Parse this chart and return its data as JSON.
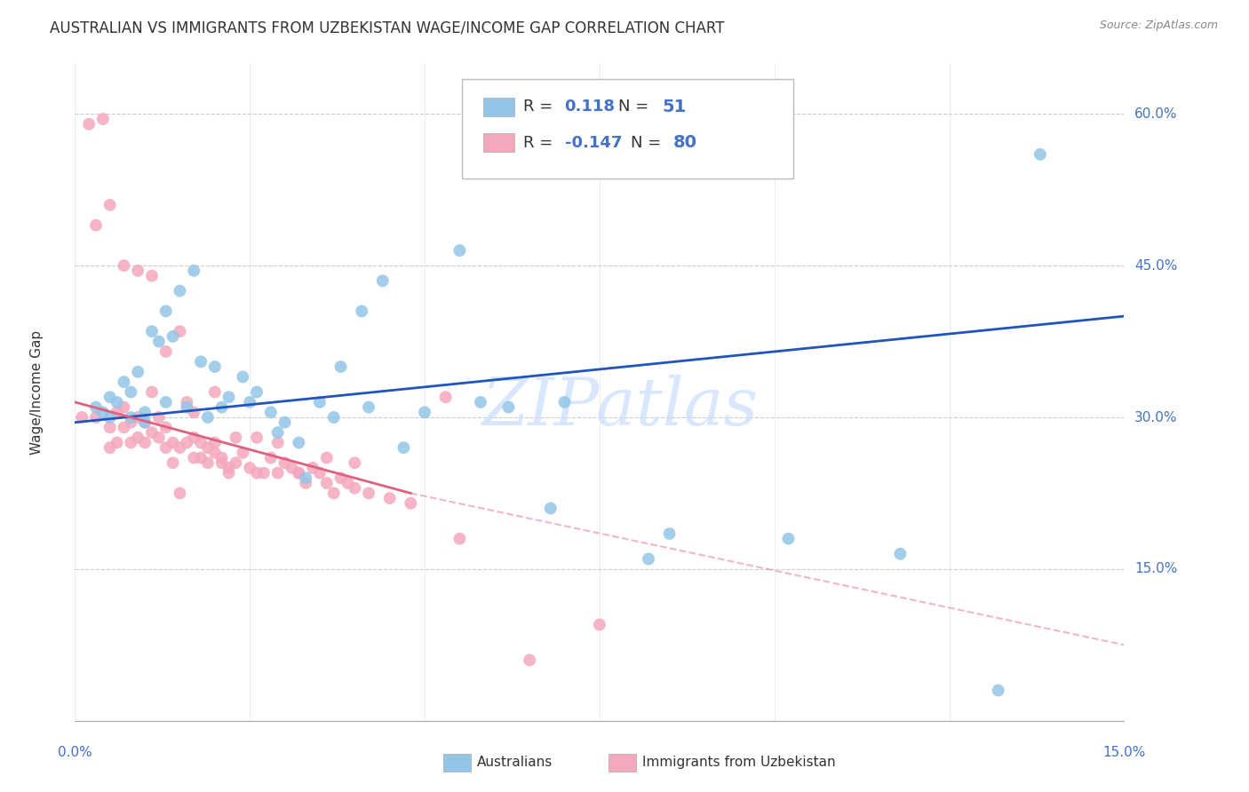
{
  "title": "AUSTRALIAN VS IMMIGRANTS FROM UZBEKISTAN WAGE/INCOME GAP CORRELATION CHART",
  "source": "Source: ZipAtlas.com",
  "ylabel": "Wage/Income Gap",
  "y_tick_labels": [
    "15.0%",
    "30.0%",
    "45.0%",
    "60.0%"
  ],
  "y_tick_values": [
    15.0,
    30.0,
    45.0,
    60.0
  ],
  "xmin": 0.0,
  "xmax": 15.0,
  "ymin": 0.0,
  "ymax": 65.0,
  "legend_r_aus": "0.118",
  "legend_n_aus": "51",
  "legend_r_imm": "-0.147",
  "legend_n_imm": "80",
  "aus_color": "#92C5E8",
  "imm_color": "#F4A8BC",
  "aus_line_color": "#2255BB",
  "imm_line_color": "#E06080",
  "watermark": "ZIPatlas",
  "background_color": "#FFFFFF",
  "grid_color": "#CCCCCC",
  "aus_line_x0": 0.0,
  "aus_line_y0": 29.5,
  "aus_line_x1": 15.0,
  "aus_line_y1": 40.0,
  "imm_solid_x0": 0.0,
  "imm_solid_y0": 31.5,
  "imm_solid_x1": 4.8,
  "imm_solid_y1": 22.5,
  "imm_dash_x1": 15.0,
  "imm_dash_y1": 7.5,
  "aus_x": [
    0.3,
    0.4,
    0.5,
    0.6,
    0.7,
    0.8,
    0.9,
    1.0,
    1.1,
    1.2,
    1.3,
    1.4,
    1.5,
    1.7,
    1.8,
    2.0,
    2.2,
    2.4,
    2.6,
    2.8,
    3.0,
    3.2,
    3.5,
    3.8,
    4.1,
    4.4,
    5.0,
    5.5,
    6.2,
    7.0,
    8.5,
    10.2,
    13.2,
    0.5,
    0.8,
    1.0,
    1.3,
    1.6,
    1.9,
    2.1,
    2.5,
    2.9,
    3.3,
    3.7,
    4.2,
    4.7,
    5.8,
    6.8,
    8.2,
    11.8,
    13.8
  ],
  "aus_y": [
    31.0,
    30.5,
    32.0,
    31.5,
    33.5,
    30.0,
    34.5,
    29.5,
    38.5,
    37.5,
    40.5,
    38.0,
    42.5,
    44.5,
    35.5,
    35.0,
    32.0,
    34.0,
    32.5,
    30.5,
    29.5,
    27.5,
    31.5,
    35.0,
    40.5,
    43.5,
    30.5,
    46.5,
    31.0,
    31.5,
    18.5,
    18.0,
    3.0,
    30.0,
    32.5,
    30.5,
    31.5,
    31.0,
    30.0,
    31.0,
    31.5,
    28.5,
    24.0,
    30.0,
    31.0,
    27.0,
    31.5,
    21.0,
    16.0,
    16.5,
    56.0
  ],
  "imm_x": [
    0.1,
    0.2,
    0.3,
    0.4,
    0.5,
    0.5,
    0.6,
    0.6,
    0.7,
    0.7,
    0.8,
    0.8,
    0.9,
    0.9,
    1.0,
    1.0,
    1.1,
    1.1,
    1.2,
    1.2,
    1.3,
    1.3,
    1.4,
    1.4,
    1.5,
    1.5,
    1.6,
    1.6,
    1.7,
    1.7,
    1.8,
    1.8,
    1.9,
    1.9,
    2.0,
    2.0,
    2.1,
    2.1,
    2.2,
    2.2,
    2.3,
    2.4,
    2.5,
    2.6,
    2.7,
    2.8,
    2.9,
    3.0,
    3.1,
    3.2,
    3.3,
    3.4,
    3.5,
    3.6,
    3.7,
    3.8,
    3.9,
    4.0,
    4.2,
    4.5,
    0.3,
    0.5,
    0.7,
    0.9,
    1.1,
    1.3,
    1.5,
    1.7,
    2.0,
    2.3,
    2.6,
    2.9,
    3.2,
    3.6,
    4.0,
    4.8,
    5.5,
    6.5,
    7.5,
    5.3
  ],
  "imm_y": [
    30.0,
    59.0,
    30.0,
    59.5,
    27.0,
    29.0,
    27.5,
    30.5,
    29.0,
    31.0,
    27.5,
    29.5,
    28.0,
    30.0,
    27.5,
    29.5,
    28.5,
    32.5,
    28.0,
    30.0,
    27.0,
    29.0,
    27.5,
    25.5,
    27.0,
    22.5,
    31.5,
    27.5,
    26.0,
    28.0,
    27.5,
    26.0,
    25.5,
    27.0,
    27.5,
    26.5,
    26.0,
    25.5,
    25.0,
    24.5,
    25.5,
    26.5,
    25.0,
    24.5,
    24.5,
    26.0,
    24.5,
    25.5,
    25.0,
    24.5,
    23.5,
    25.0,
    24.5,
    23.5,
    22.5,
    24.0,
    23.5,
    23.0,
    22.5,
    22.0,
    49.0,
    51.0,
    45.0,
    44.5,
    44.0,
    36.5,
    38.5,
    30.5,
    32.5,
    28.0,
    28.0,
    27.5,
    24.5,
    26.0,
    25.5,
    21.5,
    18.0,
    6.0,
    9.5,
    32.0
  ]
}
